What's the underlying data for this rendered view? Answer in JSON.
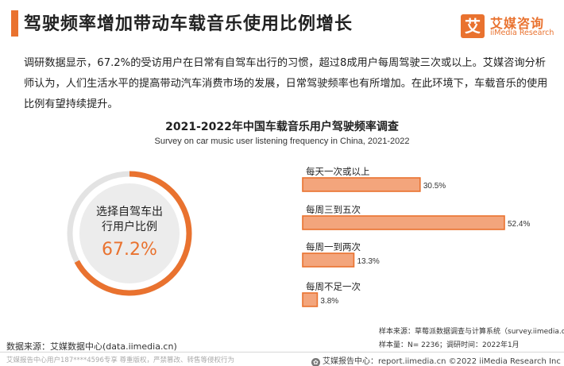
{
  "header": {
    "title": "驾驶频率增加带动车载音乐使用比例增长",
    "logo_icon": "艾",
    "logo_name": "艾媒咨询",
    "logo_en": "iiMedia Research"
  },
  "intro": {
    "text": "调研数据显示，67.2%的受访用户在日常有自驾车出行的习惯，超过8成用户每周驾驶三次或以上。艾媒咨询分析师认为，人们生活水平的提高带动汽车消费市场的发展，日常驾驶频率也有所增加。在此环境下，车载音乐的使用比例有望持续提升。"
  },
  "colors": {
    "accent": "#e9722f",
    "bar_fill": "#f3a57c",
    "donut_track": "#e3e3e3"
  },
  "chart_data": [
    {
      "type": "pie",
      "label": "选择自驾车出行用户比例",
      "value_label": "67.2%",
      "values": [
        67.2,
        32.8
      ]
    },
    {
      "type": "bar",
      "orientation": "horizontal",
      "title": "2021-2022年中国车载音乐用户驾驶频率调查",
      "subtitle": "Survey on car music user listening frequency in China, 2021-2022",
      "categories": [
        "每天一次或以上",
        "每周三到五次",
        "每周一到两次",
        "每周不足一次"
      ],
      "values": [
        30.5,
        52.4,
        13.3,
        3.8
      ],
      "value_labels": [
        "30.5%",
        "52.4%",
        "13.3%",
        "3.8%"
      ],
      "unit": "%"
    }
  ],
  "notes": {
    "source_sample": "样本来源：草莓派数据调查与计算系统（survey.iimedia.cn）",
    "sample_size": "样本量：N= 2236；调研时间：2022年1月"
  },
  "source": "数据来源：艾媒数据中心(data.iimedia.cn)",
  "footer": {
    "left": "艾媒报告中心用户187****4596专享 尊重版权，严禁篡改、转售等侵权行为",
    "right": "艾媒报告中心：report.iimedia.cn  ©2022  iiMedia Research Inc"
  }
}
